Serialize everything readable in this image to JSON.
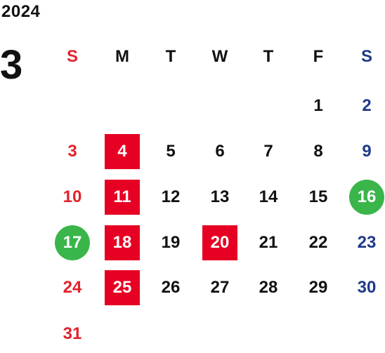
{
  "calendar": {
    "year": "2024",
    "month": "3",
    "weekdays": [
      "S",
      "M",
      "T",
      "W",
      "T",
      "F",
      "S"
    ],
    "colors": {
      "sunday": "#e2222b",
      "saturday": "#1f3a8a",
      "weekday": "#111111",
      "highlight_red": "#e60023",
      "highlight_green": "#3ab54a"
    },
    "weeks": [
      [
        "",
        "",
        "",
        "",
        "",
        "1",
        "2"
      ],
      [
        "3",
        "4",
        "5",
        "6",
        "7",
        "8",
        "9"
      ],
      [
        "10",
        "11",
        "12",
        "13",
        "14",
        "15",
        "16"
      ],
      [
        "17",
        "18",
        "19",
        "20",
        "21",
        "22",
        "23"
      ],
      [
        "24",
        "25",
        "26",
        "27",
        "28",
        "29",
        "30"
      ],
      [
        "31",
        "",
        "",
        "",
        "",
        "",
        ""
      ]
    ],
    "highlights": {
      "4": "red",
      "11": "red",
      "18": "red",
      "20": "red",
      "25": "red",
      "16": "green",
      "17": "green"
    }
  }
}
